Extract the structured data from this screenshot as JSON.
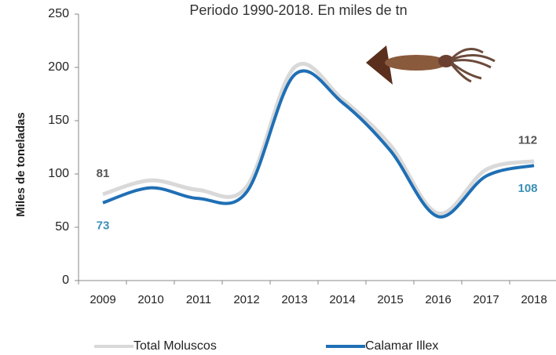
{
  "chart_data": {
    "type": "line",
    "title": "Periodo 1990-2018. En miles de tn",
    "y_label": "Miles de toneladas",
    "categories": [
      "2009",
      "2010",
      "2011",
      "2012",
      "2013",
      "2014",
      "2015",
      "2016",
      "2017",
      "2018"
    ],
    "series": [
      {
        "name": "Total Moluscos",
        "color": "#d9d9d9",
        "values": [
          81,
          94,
          85,
          88,
          200,
          170,
          127,
          63,
          104,
          112
        ]
      },
      {
        "name": "Calamar Illex",
        "color": "#1f6fb5",
        "values": [
          73,
          87,
          77,
          83,
          193,
          167,
          122,
          60,
          98,
          108
        ]
      }
    ],
    "ylim": [
      0,
      250
    ],
    "yticks": [
      0,
      50,
      100,
      150,
      200,
      250
    ],
    "legend": "bottom"
  }
}
